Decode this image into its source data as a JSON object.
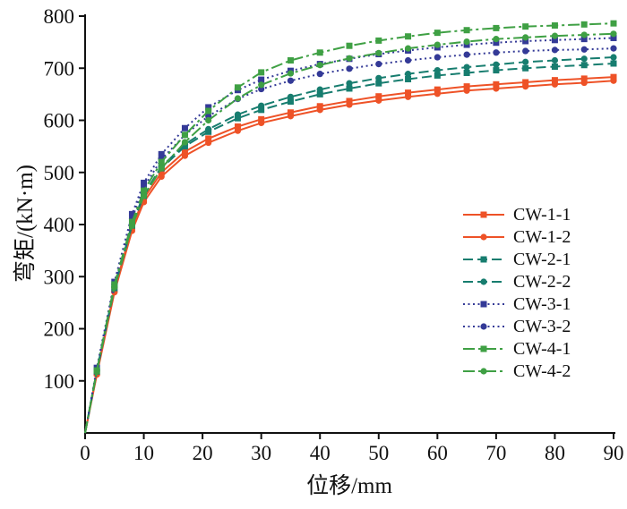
{
  "chart_data": {
    "type": "line",
    "title": "",
    "xlabel": "位移/mm",
    "ylabel": "弯矩/(kN·m)",
    "xlim": [
      0,
      90
    ],
    "ylim": [
      0,
      800
    ],
    "xticks": [
      0,
      10,
      20,
      30,
      40,
      50,
      60,
      70,
      80,
      90
    ],
    "yticks": [
      100,
      200,
      300,
      400,
      500,
      600,
      700,
      800
    ],
    "grid": false,
    "legend_position": "inside-right",
    "axis_color": "#111111",
    "x": [
      0,
      2,
      5,
      8,
      10,
      13,
      17,
      21,
      26,
      30,
      35,
      40,
      45,
      50,
      55,
      60,
      65,
      70,
      75,
      80,
      85,
      90
    ],
    "series": [
      {
        "name": "CW-1-1",
        "color": "#ee5227",
        "dash": "solid",
        "marker": "square",
        "values": [
          0,
          115,
          275,
          395,
          450,
          500,
          540,
          565,
          588,
          602,
          615,
          627,
          637,
          646,
          653,
          659,
          665,
          669,
          673,
          677,
          680,
          683
        ]
      },
      {
        "name": "CW-1-2",
        "color": "#ee5227",
        "dash": "solid",
        "marker": "circle",
        "values": [
          0,
          112,
          270,
          388,
          443,
          492,
          532,
          557,
          580,
          595,
          608,
          620,
          630,
          638,
          645,
          651,
          657,
          661,
          665,
          669,
          672,
          676
        ]
      },
      {
        "name": "CW-2-1",
        "color": "#177d6f",
        "dash": "dashed",
        "marker": "square",
        "values": [
          0,
          118,
          278,
          398,
          455,
          508,
          550,
          578,
          604,
          620,
          636,
          650,
          661,
          671,
          679,
          686,
          691,
          696,
          700,
          703,
          706,
          709
        ]
      },
      {
        "name": "CW-2-2",
        "color": "#177d6f",
        "dash": "dashed",
        "marker": "circle",
        "values": [
          0,
          120,
          280,
          400,
          458,
          511,
          554,
          583,
          611,
          628,
          645,
          659,
          671,
          681,
          689,
          696,
          702,
          707,
          712,
          715,
          718,
          721
        ]
      },
      {
        "name": "CW-3-1",
        "color": "#343a97",
        "dash": "dotted",
        "marker": "square",
        "values": [
          0,
          125,
          290,
          420,
          480,
          535,
          585,
          625,
          658,
          678,
          695,
          708,
          718,
          727,
          734,
          740,
          745,
          749,
          752,
          754,
          756,
          758
        ]
      },
      {
        "name": "CW-3-2",
        "color": "#343a97",
        "dash": "dotted",
        "marker": "circle",
        "values": [
          0,
          122,
          285,
          412,
          472,
          525,
          572,
          608,
          641,
          660,
          676,
          689,
          699,
          708,
          715,
          721,
          726,
          730,
          733,
          735,
          736,
          738
        ]
      },
      {
        "name": "CW-4-1",
        "color": "#3fa044",
        "dash": "dashdot",
        "marker": "square",
        "values": [
          0,
          120,
          285,
          405,
          465,
          520,
          572,
          618,
          663,
          692,
          715,
          730,
          743,
          753,
          761,
          768,
          773,
          777,
          780,
          782,
          784,
          786
        ]
      },
      {
        "name": "CW-4-2",
        "color": "#3fa044",
        "dash": "dashdot",
        "marker": "circle",
        "values": [
          0,
          118,
          280,
          398,
          455,
          508,
          558,
          600,
          642,
          668,
          690,
          706,
          719,
          729,
          738,
          745,
          751,
          756,
          759,
          762,
          764,
          766
        ]
      }
    ]
  }
}
